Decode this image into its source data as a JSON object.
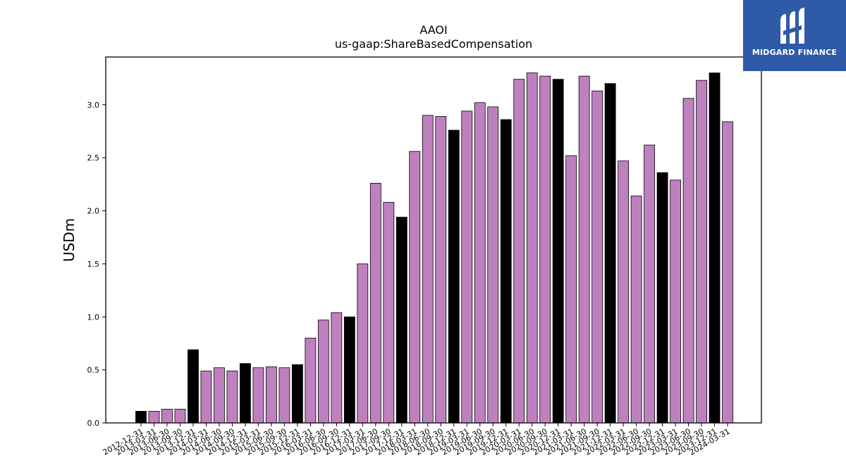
{
  "chart_data": {
    "type": "bar",
    "title": "AAOI",
    "subtitle": "us-gaap:ShareBasedCompensation",
    "xlabel": "",
    "ylabel": "USDm",
    "ylim": [
      0,
      3.45
    ],
    "yticks": [
      "0.0",
      "0.5",
      "1.0",
      "1.5",
      "2.0",
      "2.5",
      "3.0"
    ],
    "grid": false,
    "colors": {
      "quarter": "#bf80c0",
      "annual": "#000000",
      "edge": "#000000"
    },
    "categories": [
      "2012-12-31",
      "2013-03-31",
      "2013-06-30",
      "2013-09-30",
      "2013-12-31",
      "2014-03-31",
      "2014-06-30",
      "2014-09-30",
      "2014-12-31",
      "2015-03-31",
      "2015-06-30",
      "2015-09-30",
      "2015-12-31",
      "2016-03-31",
      "2016-06-30",
      "2016-09-30",
      "2016-12-31",
      "2017-03-31",
      "2017-06-30",
      "2017-09-30",
      "2017-12-31",
      "2018-03-31",
      "2018-06-30",
      "2018-09-30",
      "2018-12-31",
      "2019-03-31",
      "2019-06-30",
      "2019-09-30",
      "2019-12-31",
      "2020-03-31",
      "2020-06-30",
      "2020-09-30",
      "2020-12-31",
      "2021-03-31",
      "2021-06-30",
      "2021-09-30",
      "2021-12-31",
      "2022-03-31",
      "2022-06-30",
      "2022-09-30",
      "2022-12-31",
      "2023-03-31",
      "2023-06-30",
      "2023-09-30",
      "2023-12-31",
      "2024-03-31"
    ],
    "values": [
      0.11,
      0.11,
      0.13,
      0.13,
      0.69,
      0.49,
      0.52,
      0.49,
      0.56,
      0.52,
      0.53,
      0.52,
      0.55,
      0.8,
      0.97,
      1.04,
      1.0,
      1.5,
      2.26,
      2.08,
      1.94,
      2.56,
      2.9,
      2.89,
      2.76,
      2.94,
      3.02,
      2.98,
      2.86,
      3.24,
      3.3,
      3.27,
      3.24,
      2.52,
      3.27,
      3.13,
      3.2,
      2.47,
      2.14,
      2.62,
      2.36,
      2.29,
      3.06,
      3.23,
      3.3,
      2.84
    ],
    "annual_flags": [
      1,
      0,
      0,
      0,
      1,
      0,
      0,
      0,
      1,
      0,
      0,
      0,
      1,
      0,
      0,
      0,
      1,
      0,
      0,
      0,
      1,
      0,
      0,
      0,
      1,
      0,
      0,
      0,
      1,
      0,
      0,
      0,
      1,
      0,
      0,
      0,
      1,
      0,
      0,
      0,
      1,
      0,
      0,
      0,
      1,
      0
    ]
  },
  "logo": {
    "text": "MIDGARD FINANCE"
  }
}
